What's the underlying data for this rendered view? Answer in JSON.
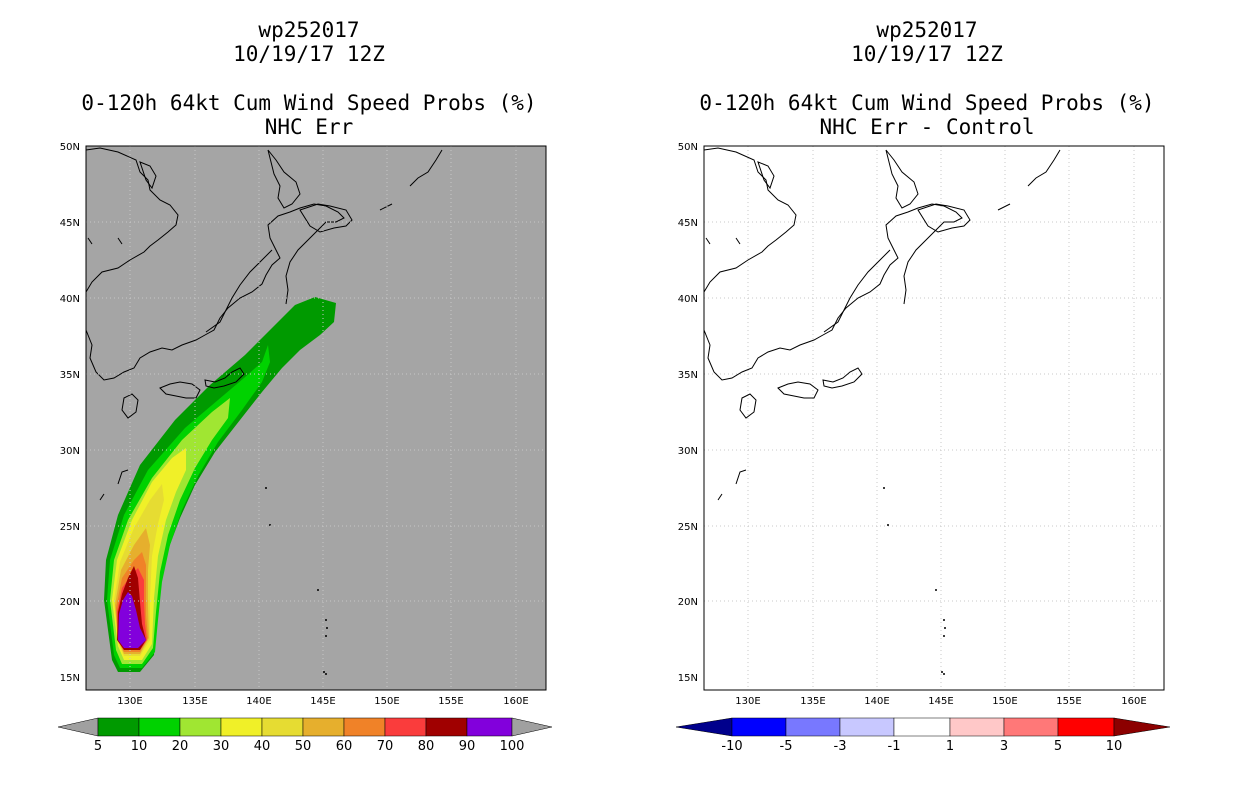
{
  "left_panel": {
    "titles": [
      "wp252017",
      "10/19/17 12Z",
      "0-120h 64kt Cum Wind Speed Probs (%)",
      "NHC Err"
    ],
    "lat_labels": [
      "50N",
      "45N",
      "40N",
      "35N",
      "30N",
      "25N",
      "20N",
      "15N"
    ],
    "lon_labels": [
      "130E",
      "135E",
      "140E",
      "145E",
      "150E",
      "155E",
      "160E"
    ],
    "colorbar": {
      "labels": [
        "5",
        "10",
        "20",
        "30",
        "40",
        "50",
        "60",
        "70",
        "80",
        "90",
        "100"
      ],
      "colors": [
        "#009a00",
        "#00d200",
        "#a0e632",
        "#f0f028",
        "#e6dc32",
        "#e6af2d",
        "#f08228",
        "#fa3c3c",
        "#a00000",
        "#8200dc"
      ],
      "end_colors": [
        "#a0a0a0",
        "#a0a0a0"
      ]
    },
    "map_background": "#a5a5a5"
  },
  "right_panel": {
    "titles": [
      "wp252017",
      "10/19/17 12Z",
      "0-120h 64kt Cum Wind Speed Probs (%)",
      "NHC Err - Control"
    ],
    "lat_labels": [
      "50N",
      "45N",
      "40N",
      "35N",
      "30N",
      "25N",
      "20N",
      "15N"
    ],
    "lon_labels": [
      "130E",
      "135E",
      "140E",
      "145E",
      "150E",
      "155E",
      "160E"
    ],
    "colorbar": {
      "labels": [
        "-10",
        "-5",
        "-3",
        "-1",
        "1",
        "3",
        "5",
        "10"
      ],
      "colors": [
        "#0000ff",
        "#7878ff",
        "#c8c8ff",
        "#ffffff",
        "#ffc8c8",
        "#ff7878",
        "#ff0000"
      ],
      "end_colors": [
        "#00008c",
        "#8c0000"
      ]
    },
    "map_background": "#ffffff"
  }
}
